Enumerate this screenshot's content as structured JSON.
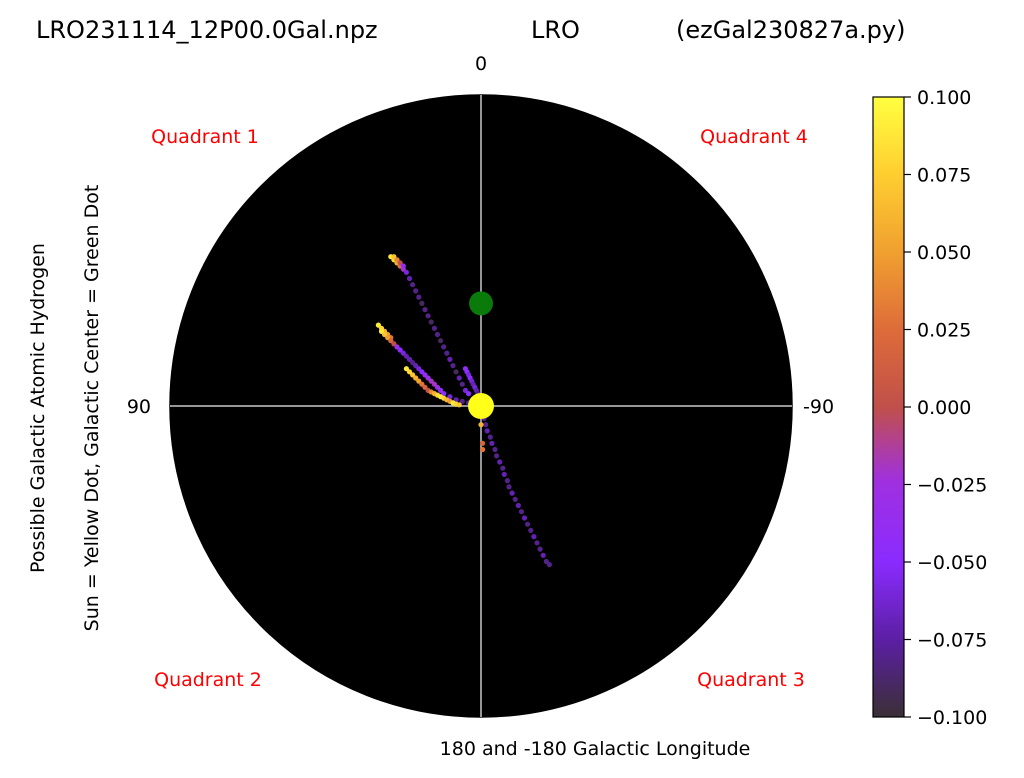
{
  "header": {
    "file": "LRO231114_12P00.0Gal.npz",
    "station": "LRO",
    "script": "(ezGal230827a.py)"
  },
  "chart_data": {
    "type": "scatter",
    "projection": "polar",
    "background": "#000000",
    "angle_labels": {
      "top": "0",
      "left": "90",
      "right": "-90"
    },
    "xlabel": "180 and -180 Galactic Longitude",
    "ylabel_lines": [
      "Possible Galactic Atomic Hydrogen",
      "Sun = Yellow Dot, Galactic Center = Green Dot"
    ],
    "quadrants": {
      "top_left": "Quadrant 1",
      "top_right": "Quadrant 4",
      "bottom_left": "Quadrant 2",
      "bottom_right": "Quadrant 3"
    },
    "markers": {
      "sun": {
        "x": 0,
        "y": 0,
        "color": "#ffff1a"
      },
      "galactic_center": {
        "x": 0,
        "y": 0.33,
        "color": "#0a7a0a"
      }
    },
    "colorbar": {
      "colormap": "gnuplot-like",
      "min": -0.1,
      "max": 0.1,
      "ticks": [
        0.1,
        0.075,
        0.05,
        0.025,
        0.0,
        -0.025,
        -0.05,
        -0.075,
        -0.1
      ],
      "tick_labels": [
        "0.100",
        "0.075",
        "0.050",
        "0.025",
        "0.000",
        "−0.025",
        "−0.050",
        "−0.075",
        "−0.100"
      ],
      "stops": [
        "#3a3035",
        "#5a1fa0",
        "#8a2bff",
        "#a030e0",
        "#c0504a",
        "#dd6a3a",
        "#f0a030",
        "#ffd030",
        "#ffff40"
      ]
    },
    "series": [
      {
        "arm": "upper",
        "points": [
          [
            -0.29,
            0.48,
            0.09
          ],
          [
            -0.28,
            0.47,
            0.08
          ],
          [
            -0.27,
            0.46,
            0.06
          ],
          [
            -0.26,
            0.45,
            0.03
          ],
          [
            -0.25,
            0.44,
            -0.02
          ],
          [
            -0.28,
            0.48,
            0.07
          ],
          [
            -0.27,
            0.47,
            0.04
          ],
          [
            -0.26,
            0.46,
            0.0
          ],
          [
            -0.25,
            0.45,
            -0.04
          ],
          [
            -0.24,
            0.43,
            -0.06
          ],
          [
            -0.23,
            0.41,
            -0.07
          ],
          [
            -0.22,
            0.39,
            -0.08
          ],
          [
            -0.21,
            0.37,
            -0.08
          ],
          [
            -0.2,
            0.35,
            -0.08
          ],
          [
            -0.19,
            0.33,
            -0.09
          ],
          [
            -0.18,
            0.31,
            -0.08
          ],
          [
            -0.17,
            0.29,
            -0.08
          ],
          [
            -0.16,
            0.27,
            -0.09
          ],
          [
            -0.15,
            0.25,
            -0.08
          ],
          [
            -0.14,
            0.23,
            -0.08
          ],
          [
            -0.13,
            0.21,
            -0.09
          ],
          [
            -0.12,
            0.19,
            -0.08
          ],
          [
            -0.11,
            0.17,
            -0.08
          ],
          [
            -0.1,
            0.15,
            -0.07
          ],
          [
            -0.09,
            0.13,
            -0.08
          ],
          [
            -0.08,
            0.11,
            -0.09
          ],
          [
            -0.07,
            0.09,
            -0.07
          ],
          [
            -0.06,
            0.07,
            -0.08
          ],
          [
            -0.05,
            0.05,
            -0.06
          ],
          [
            -0.04,
            0.04,
            -0.05
          ]
        ]
      },
      {
        "arm": "middle",
        "points": [
          [
            -0.33,
            0.26,
            0.09
          ],
          [
            -0.32,
            0.25,
            0.08
          ],
          [
            -0.31,
            0.24,
            0.06
          ],
          [
            -0.3,
            0.23,
            0.05
          ],
          [
            -0.29,
            0.22,
            0.03
          ],
          [
            -0.32,
            0.24,
            0.09
          ],
          [
            -0.31,
            0.23,
            0.07
          ],
          [
            -0.3,
            0.22,
            0.05
          ],
          [
            -0.29,
            0.21,
            0.02
          ],
          [
            -0.28,
            0.2,
            0.0
          ],
          [
            -0.27,
            0.19,
            -0.03
          ],
          [
            -0.26,
            0.18,
            -0.05
          ],
          [
            -0.25,
            0.17,
            -0.06
          ],
          [
            -0.24,
            0.16,
            -0.07
          ],
          [
            -0.23,
            0.15,
            -0.07
          ],
          [
            -0.22,
            0.14,
            -0.08
          ],
          [
            -0.21,
            0.13,
            -0.07
          ],
          [
            -0.2,
            0.12,
            -0.06
          ],
          [
            -0.19,
            0.11,
            -0.05
          ],
          [
            -0.18,
            0.1,
            -0.04
          ],
          [
            -0.17,
            0.09,
            -0.03
          ],
          [
            -0.16,
            0.08,
            -0.02
          ],
          [
            -0.15,
            0.07,
            -0.02
          ],
          [
            -0.14,
            0.06,
            -0.03
          ],
          [
            -0.13,
            0.05,
            -0.04
          ],
          [
            -0.12,
            0.04,
            -0.05
          ],
          [
            -0.1,
            0.03,
            -0.06
          ],
          [
            -0.08,
            0.02,
            -0.07
          ],
          [
            -0.06,
            0.015,
            -0.08
          ],
          [
            -0.04,
            0.01,
            -0.08
          ]
        ]
      },
      {
        "arm": "lower",
        "points": [
          [
            -0.24,
            0.12,
            0.09
          ],
          [
            -0.23,
            0.11,
            0.08
          ],
          [
            -0.22,
            0.1,
            0.07
          ],
          [
            -0.21,
            0.09,
            0.06
          ],
          [
            -0.2,
            0.08,
            0.05
          ],
          [
            -0.19,
            0.07,
            0.03
          ],
          [
            -0.18,
            0.06,
            0.02
          ],
          [
            -0.17,
            0.05,
            0.0
          ],
          [
            -0.16,
            0.045,
            0.04
          ],
          [
            -0.15,
            0.04,
            0.06
          ],
          [
            -0.14,
            0.035,
            0.08
          ],
          [
            -0.13,
            0.03,
            0.09
          ],
          [
            -0.12,
            0.025,
            0.08
          ],
          [
            -0.11,
            0.02,
            0.06
          ],
          [
            -0.1,
            0.015,
            0.05
          ],
          [
            -0.09,
            0.01,
            0.09
          ],
          [
            -0.08,
            0.006,
            0.08
          ],
          [
            -0.07,
            0.004,
            0.07
          ]
        ]
      },
      {
        "arm": "sunward",
        "points": [
          [
            -0.05,
            0.12,
            -0.04
          ],
          [
            -0.045,
            0.11,
            -0.05
          ],
          [
            -0.04,
            0.1,
            -0.06
          ],
          [
            -0.035,
            0.09,
            -0.05
          ],
          [
            -0.03,
            0.08,
            -0.06
          ],
          [
            -0.025,
            0.07,
            -0.07
          ],
          [
            -0.02,
            0.06,
            -0.06
          ],
          [
            -0.015,
            0.05,
            -0.07
          ],
          [
            -0.01,
            0.04,
            -0.08
          ],
          [
            -0.005,
            0.03,
            -0.07
          ]
        ]
      },
      {
        "arm": "outer",
        "points": [
          [
            0.0,
            -0.02,
            0.08
          ],
          [
            0.01,
            -0.04,
            -0.08
          ],
          [
            0.015,
            -0.06,
            -0.08
          ],
          [
            0.02,
            -0.08,
            -0.07
          ],
          [
            0.03,
            -0.1,
            -0.08
          ],
          [
            0.035,
            -0.12,
            -0.07
          ],
          [
            0.045,
            -0.14,
            -0.08
          ],
          [
            0.05,
            -0.16,
            -0.08
          ],
          [
            0.06,
            -0.18,
            -0.07
          ],
          [
            0.07,
            -0.2,
            -0.08
          ],
          [
            0.075,
            -0.22,
            -0.07
          ],
          [
            0.085,
            -0.24,
            -0.08
          ],
          [
            0.09,
            -0.26,
            -0.08
          ],
          [
            0.1,
            -0.28,
            -0.07
          ],
          [
            0.11,
            -0.3,
            -0.08
          ],
          [
            0.12,
            -0.32,
            -0.07
          ],
          [
            0.13,
            -0.34,
            -0.08
          ],
          [
            0.14,
            -0.36,
            -0.07
          ],
          [
            0.15,
            -0.38,
            -0.08
          ],
          [
            0.16,
            -0.4,
            -0.08
          ],
          [
            0.17,
            -0.42,
            -0.07
          ],
          [
            0.18,
            -0.44,
            -0.08
          ],
          [
            0.19,
            -0.46,
            -0.08
          ],
          [
            0.2,
            -0.48,
            -0.07
          ],
          [
            0.21,
            -0.5,
            -0.08
          ],
          [
            0.22,
            -0.51,
            -0.08
          ],
          [
            0.0,
            -0.06,
            0.06
          ],
          [
            0.005,
            -0.12,
            0.02
          ],
          [
            0.005,
            -0.14,
            0.03
          ],
          [
            0.0,
            -0.01,
            0.09
          ]
        ]
      }
    ]
  }
}
